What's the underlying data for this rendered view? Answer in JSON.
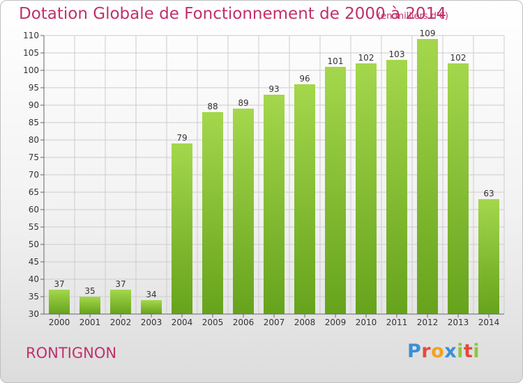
{
  "title": "Dotation Globale de Fonctionnement de 2000 à 2014",
  "unit": "(en milliers d'€)",
  "commune": "RONTIGNON",
  "logo": {
    "letters": [
      "P",
      "r",
      "o",
      "x",
      "i",
      "t",
      "i"
    ],
    "colors": [
      "#3a8fd6",
      "#e24a3a",
      "#f2a21c",
      "#3a8fd6",
      "#8dc63f",
      "#e24a3a",
      "#8dc63f"
    ]
  },
  "colors": {
    "title": "#c0306a",
    "bar_top": "#a4d74c",
    "bar_bottom": "#66a31c",
    "grid": "#cccccc"
  },
  "chart_data": {
    "type": "bar",
    "title": "Dotation Globale de Fonctionnement de 2000 à 2014",
    "subtitle": "(en milliers d'€)",
    "categories": [
      "2000",
      "2001",
      "2002",
      "2003",
      "2004",
      "2005",
      "2006",
      "2007",
      "2008",
      "2009",
      "2010",
      "2011",
      "2012",
      "2013",
      "2014"
    ],
    "values": [
      37,
      35,
      37,
      34,
      79,
      88,
      89,
      93,
      96,
      101,
      102,
      103,
      109,
      102,
      63
    ],
    "ylim": [
      30,
      110
    ],
    "yticks": [
      30,
      35,
      40,
      45,
      50,
      55,
      60,
      65,
      70,
      75,
      80,
      85,
      90,
      95,
      100,
      105,
      110
    ],
    "grid": true,
    "data_labels": true
  }
}
